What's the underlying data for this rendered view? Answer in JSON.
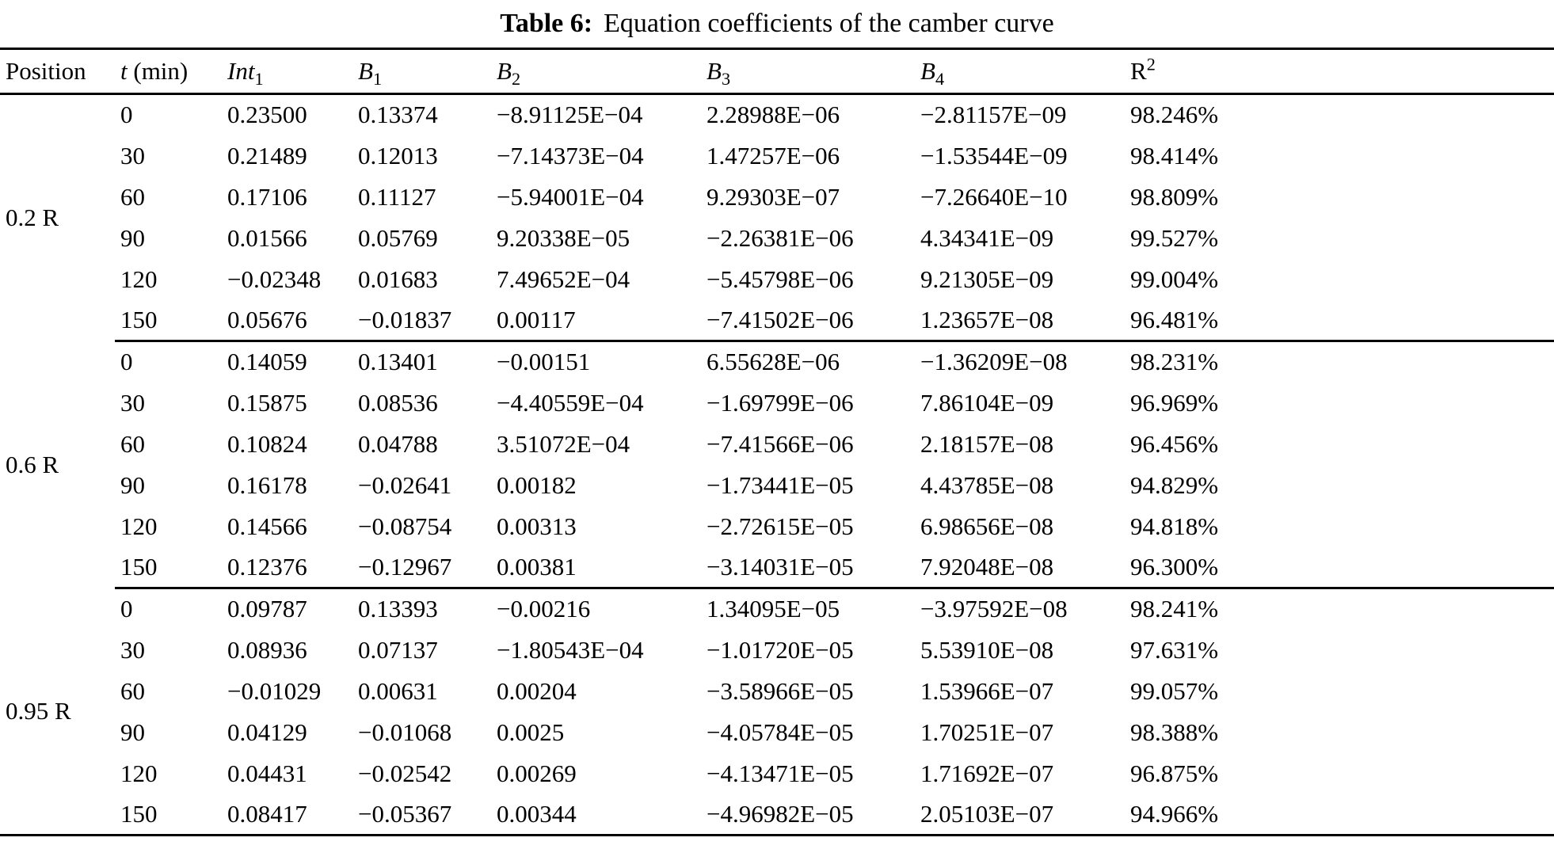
{
  "caption": {
    "label": "Table 6:",
    "text": "Equation coefficients of the camber curve"
  },
  "table": {
    "headers": {
      "position": "Position",
      "t": {
        "italic": "t",
        "rest": " (min)"
      },
      "int1": {
        "base": "Int",
        "sub": "1"
      },
      "b1": {
        "base": "B",
        "sub": "1"
      },
      "b2": {
        "base": "B",
        "sub": "2"
      },
      "b3": {
        "base": "B",
        "sub": "3"
      },
      "b4": {
        "base": "B",
        "sub": "4"
      },
      "r2": {
        "base": "R",
        "sup": "2"
      }
    },
    "groups": [
      {
        "position": "0.2 R",
        "rows": [
          [
            "0",
            "0.23500",
            "0.13374",
            "−8.91125E−04",
            "2.28988E−06",
            "−2.81157E−09",
            "98.246%"
          ],
          [
            "30",
            "0.21489",
            "0.12013",
            "−7.14373E−04",
            "1.47257E−06",
            "−1.53544E−09",
            "98.414%"
          ],
          [
            "60",
            "0.17106",
            "0.11127",
            "−5.94001E−04",
            "9.29303E−07",
            "−7.26640E−10",
            "98.809%"
          ],
          [
            "90",
            "0.01566",
            "0.05769",
            "9.20338E−05",
            "−2.26381E−06",
            "4.34341E−09",
            "99.527%"
          ],
          [
            "120",
            "−0.02348",
            "0.01683",
            "7.49652E−04",
            "−5.45798E−06",
            "9.21305E−09",
            "99.004%"
          ],
          [
            "150",
            "0.05676",
            "−0.01837",
            "0.00117",
            "−7.41502E−06",
            "1.23657E−08",
            "96.481%"
          ]
        ]
      },
      {
        "position": "0.6 R",
        "rows": [
          [
            "0",
            "0.14059",
            "0.13401",
            "−0.00151",
            "6.55628E−06",
            "−1.36209E−08",
            "98.231%"
          ],
          [
            "30",
            "0.15875",
            "0.08536",
            "−4.40559E−04",
            "−1.69799E−06",
            "7.86104E−09",
            "96.969%"
          ],
          [
            "60",
            "0.10824",
            "0.04788",
            "3.51072E−04",
            "−7.41566E−06",
            "2.18157E−08",
            "96.456%"
          ],
          [
            "90",
            "0.16178",
            "−0.02641",
            "0.00182",
            "−1.73441E−05",
            "4.43785E−08",
            "94.829%"
          ],
          [
            "120",
            "0.14566",
            "−0.08754",
            "0.00313",
            "−2.72615E−05",
            "6.98656E−08",
            "94.818%"
          ],
          [
            "150",
            "0.12376",
            "−0.12967",
            "0.00381",
            "−3.14031E−05",
            "7.92048E−08",
            "96.300%"
          ]
        ]
      },
      {
        "position": "0.95 R",
        "rows": [
          [
            "0",
            "0.09787",
            "0.13393",
            "−0.00216",
            "1.34095E−05",
            "−3.97592E−08",
            "98.241%"
          ],
          [
            "30",
            "0.08936",
            "0.07137",
            "−1.80543E−04",
            "−1.01720E−05",
            "5.53910E−08",
            "97.631%"
          ],
          [
            "60",
            "−0.01029",
            "0.00631",
            "0.00204",
            "−3.58966E−05",
            "1.53966E−07",
            "99.057%"
          ],
          [
            "90",
            "0.04129",
            "−0.01068",
            "0.0025",
            "−4.05784E−05",
            "1.70251E−07",
            "98.388%"
          ],
          [
            "120",
            "0.04431",
            "−0.02542",
            "0.00269",
            "−4.13471E−05",
            "1.71692E−07",
            "96.875%"
          ],
          [
            "150",
            "0.08417",
            "−0.05367",
            "0.00344",
            "−4.96982E−05",
            "2.05103E−07",
            "94.966%"
          ]
        ]
      }
    ]
  }
}
